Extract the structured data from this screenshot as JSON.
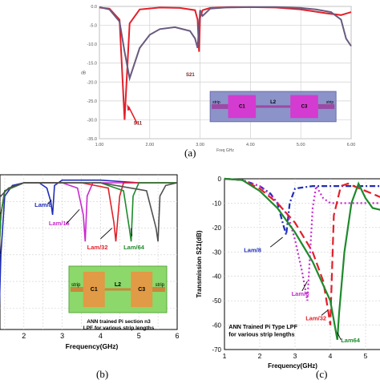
{
  "chart_data": [
    {
      "panel": "(a)",
      "type": "line",
      "xlabel": "Freq GHz",
      "ylabel": "dB",
      "xlim": [
        1.0,
        6.0
      ],
      "ylim": [
        -35.0,
        0.0
      ],
      "x_ticks": [
        "1.00",
        "2.00",
        "3.00",
        "4.00",
        "5.00",
        "6.00"
      ],
      "y_ticks": [
        "0.0",
        "-5.0",
        "-10.0",
        "-15.0",
        "-20.0",
        "-25.0",
        "-30.0",
        "-35.0"
      ],
      "grid": true,
      "series": [
        {
          "name": "S11",
          "color": "#e2202a",
          "x": [
            1.0,
            1.2,
            1.4,
            1.5,
            1.6,
            1.8,
            2.2,
            2.6,
            2.9,
            2.95,
            2.98,
            3.0,
            3.05,
            3.2,
            3.6,
            4.0,
            4.5,
            5.0,
            5.5,
            5.8,
            6.0
          ],
          "y": [
            -0.3,
            -0.6,
            -3.5,
            -30.0,
            -4.5,
            -0.8,
            -0.3,
            -0.4,
            -1.0,
            -3.5,
            -12.0,
            -3.0,
            -1.0,
            -0.4,
            -0.2,
            -0.2,
            -0.3,
            -0.8,
            -1.8,
            -2.3,
            -1.5
          ]
        },
        {
          "name": "S21",
          "color": "#6a5a7f",
          "x": [
            1.0,
            1.2,
            1.4,
            1.5,
            1.6,
            1.8,
            2.0,
            2.2,
            2.5,
            2.8,
            2.9,
            2.95,
            3.0,
            3.05,
            3.2,
            3.5,
            4.0,
            4.5,
            5.0,
            5.3,
            5.6,
            5.8,
            5.9,
            6.0
          ],
          "y": [
            -0.2,
            -0.8,
            -4.0,
            -12.0,
            -19.0,
            -11.0,
            -7.5,
            -6.0,
            -5.5,
            -6.5,
            -8.5,
            -11.0,
            -1.0,
            -2.5,
            -0.6,
            -0.3,
            -0.2,
            -0.2,
            -0.4,
            -0.8,
            -1.5,
            -3.5,
            -8.5,
            -10.5
          ]
        }
      ],
      "annotations": [
        "S11",
        "S21"
      ],
      "inset_labels": [
        "strip",
        "C1",
        "L2",
        "C3",
        "strip"
      ]
    },
    {
      "panel": "(b)",
      "type": "line",
      "xlabel": "Frequency(GHz)",
      "ylabel": "",
      "xlim": [
        1,
        6
      ],
      "x_ticks": [
        "2",
        "3",
        "4",
        "5",
        "6"
      ],
      "grid": true,
      "series": [
        {
          "name": "Lam/8",
          "color": "#1f2db8",
          "x": [
            1,
            1.1,
            1.2,
            1.3,
            1.35,
            1.4,
            1.5,
            1.7,
            2.0,
            2.4,
            2.6,
            2.7,
            2.75,
            2.8,
            3.0,
            4.0,
            5.0,
            6.0
          ],
          "y": [
            -1,
            -3,
            -10,
            -30,
            -55,
            -30,
            -8,
            -4,
            -3,
            -3,
            -5,
            -10,
            -15,
            -4,
            -2,
            -2,
            -3,
            -3
          ]
        },
        {
          "name": "Lam/16",
          "color": "#c82ad0",
          "x": [
            1,
            1.1,
            1.2,
            1.3,
            1.4,
            1.5,
            2.0,
            3.0,
            3.4,
            3.55,
            3.6,
            3.65,
            3.8,
            4.5,
            6.0
          ],
          "y": [
            -1,
            -3,
            -12,
            -45,
            -15,
            -6,
            -3,
            -3,
            -5,
            -15,
            -25,
            -8,
            -3,
            -3,
            -3
          ]
        },
        {
          "name": "Lam/32",
          "color": "#e2202a",
          "x": [
            1,
            1.1,
            1.2,
            1.3,
            1.4,
            1.5,
            2.0,
            3.5,
            4.2,
            4.35,
            4.4,
            4.5,
            4.6,
            5.5,
            6.0
          ],
          "y": [
            -1,
            -3,
            -12,
            -45,
            -15,
            -6,
            -3,
            -3,
            -5,
            -18,
            -25,
            -8,
            -3,
            -3,
            -3
          ]
        },
        {
          "name": "Lam/64",
          "color": "#1e8a2c",
          "x": [
            1,
            1.1,
            1.2,
            1.3,
            1.4,
            1.5,
            2.0,
            4.0,
            4.6,
            4.75,
            4.8,
            4.85,
            5.0,
            6.0
          ],
          "y": [
            -1,
            -3,
            -12,
            -45,
            -15,
            -6,
            -3,
            -3,
            -6,
            -20,
            -25,
            -8,
            -3,
            -3
          ]
        },
        {
          "name": "",
          "color": "#505050",
          "x": [
            1,
            1.2,
            1.4,
            1.6,
            2.0,
            4.0,
            5.2,
            5.45,
            5.5,
            5.55,
            5.7,
            6.0
          ],
          "y": [
            -1,
            -4,
            -8,
            -5,
            -3,
            -3,
            -6,
            -20,
            -25,
            -8,
            -4,
            -3
          ]
        }
      ],
      "annotations": [
        "Lam/8",
        "Lam/16",
        "Lam/32",
        "Lam/64"
      ],
      "inset_labels": [
        "strip",
        "C1",
        "L2",
        "C3",
        "strip"
      ],
      "inset_caption": [
        "ANN trained Pi section n3",
        "LPF for various strip lengths"
      ]
    },
    {
      "panel": "(c)",
      "type": "line",
      "xlabel": "Frequency(GHz)",
      "ylabel": "Transmission S21(dB)",
      "xlim": [
        1,
        5.5
      ],
      "ylim": [
        -70,
        0
      ],
      "x_ticks": [
        "1",
        "2",
        "3",
        "4",
        "5"
      ],
      "y_ticks": [
        "0",
        "-10",
        "-20",
        "-30",
        "-40",
        "-50",
        "-60",
        "-70"
      ],
      "grid": true,
      "series": [
        {
          "name": "Lam/8",
          "color": "#1f2db8",
          "dash": "7,3,2,3",
          "x": [
            1,
            1.5,
            2.0,
            2.3,
            2.5,
            2.65,
            2.75,
            2.85,
            3.0,
            3.5,
            4.0,
            4.5,
            5.5
          ],
          "y": [
            0,
            -0.5,
            -3,
            -6,
            -10,
            -18,
            -23,
            -10,
            -4,
            -3,
            -3,
            -3,
            -3
          ]
        },
        {
          "name": "Lam/8",
          "color": "#c82ad0",
          "dash": "2,3",
          "x": [
            1,
            1.5,
            2.0,
            2.4,
            2.8,
            3.0,
            3.2,
            3.35,
            3.5,
            3.6,
            3.8,
            4.0,
            5.5
          ],
          "y": [
            0,
            -0.5,
            -3,
            -8,
            -15,
            -25,
            -38,
            -50,
            -12,
            -3,
            -8,
            -10,
            -10
          ]
        },
        {
          "name": "Lam/32",
          "color": "#e2202a",
          "dash": "10,5",
          "x": [
            1,
            1.5,
            2.0,
            2.5,
            3.0,
            3.5,
            3.8,
            3.95,
            4.0,
            4.1,
            4.3,
            4.5,
            5.0,
            5.5
          ],
          "y": [
            0,
            -0.5,
            -4,
            -10,
            -18,
            -30,
            -42,
            -55,
            -60,
            -15,
            -3,
            -2,
            -5,
            -8
          ]
        },
        {
          "name": "Lam64",
          "color": "#1e8a2c",
          "dash": "",
          "x": [
            1,
            1.5,
            2.0,
            2.5,
            3.0,
            3.5,
            4.0,
            4.15,
            4.2,
            4.25,
            4.4,
            4.6,
            4.8,
            5.0,
            5.2,
            5.5
          ],
          "y": [
            0,
            -0.5,
            -5,
            -12,
            -22,
            -34,
            -50,
            -62,
            -66,
            -55,
            -30,
            -10,
            -2,
            -8,
            -12,
            -13
          ]
        }
      ],
      "annotations": [
        "Lam/8",
        "Lam/8",
        "Lam/32",
        "Lam64"
      ],
      "caption": [
        "ANN Trained Pi Type LPF",
        "for various strip lengths"
      ]
    }
  ]
}
